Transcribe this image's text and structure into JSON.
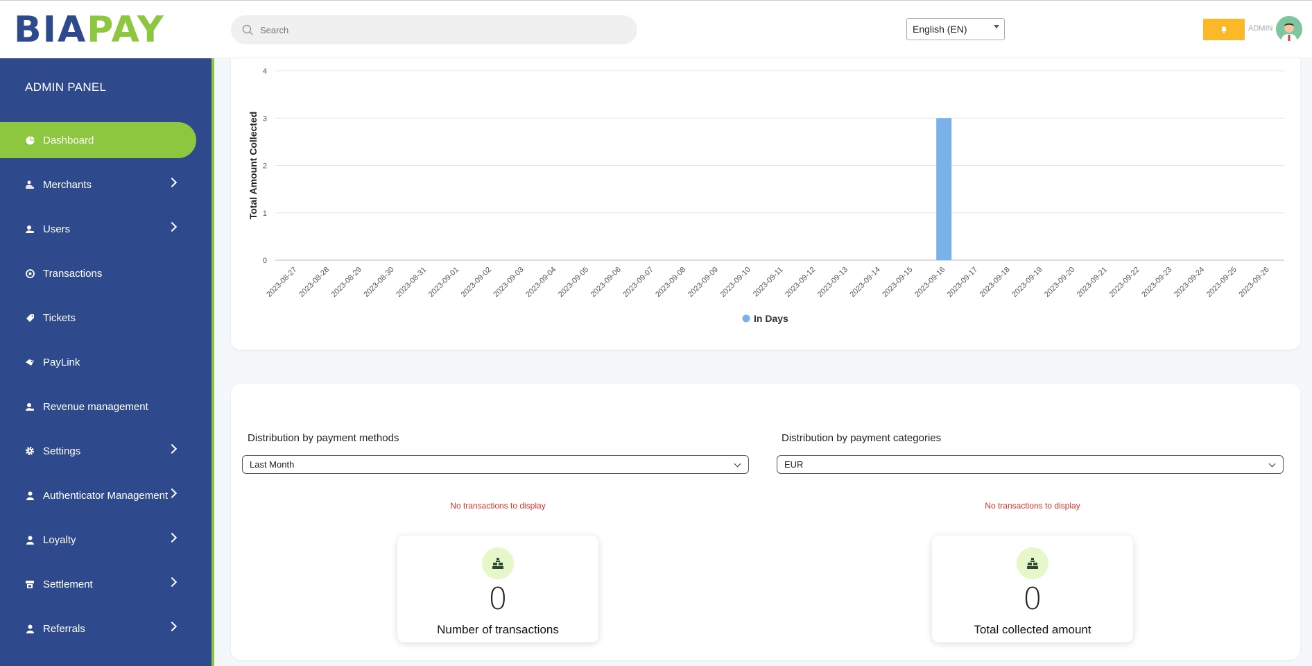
{
  "brand": {
    "logo_part1": "BIA",
    "logo_part2": "PAY"
  },
  "header": {
    "search_placeholder": "Search",
    "language": "English (EN)",
    "notification_icon": "bell-icon",
    "admin_label": "ADMIN"
  },
  "sidebar": {
    "title": "ADMIN PANEL",
    "items": [
      {
        "label": "Dashboard",
        "icon": "dashboard-icon",
        "active": true,
        "has_submenu": false
      },
      {
        "label": "Merchants",
        "icon": "merchant-icon",
        "has_submenu": true
      },
      {
        "label": "Users",
        "icon": "users-icon",
        "has_submenu": true
      },
      {
        "label": "Transactions",
        "icon": "transactions-icon",
        "has_submenu": false
      },
      {
        "label": "Tickets",
        "icon": "ticket-icon",
        "has_submenu": false
      },
      {
        "label": "PayLink",
        "icon": "paylink-icon",
        "has_submenu": false
      },
      {
        "label": "Revenue management",
        "icon": "revenue-icon",
        "has_submenu": false
      },
      {
        "label": "Settings",
        "icon": "gear-icon",
        "has_submenu": true
      },
      {
        "label": "Authenticator Management",
        "icon": "authenticator-icon",
        "has_submenu": true
      },
      {
        "label": "Loyalty",
        "icon": "loyalty-icon",
        "has_submenu": true
      },
      {
        "label": "Settlement",
        "icon": "settlement-icon",
        "has_submenu": true
      },
      {
        "label": "Referrals",
        "icon": "referrals-icon",
        "has_submenu": true
      }
    ]
  },
  "chart_data": {
    "type": "bar",
    "ylabel": "Total Amount Collected",
    "ylim": [
      0,
      4
    ],
    "yticks": [
      0,
      1,
      2,
      3,
      4
    ],
    "categories": [
      "2023-08-27",
      "2023-08-28",
      "2023-08-29",
      "2023-08-30",
      "2023-08-31",
      "2023-09-01",
      "2023-09-02",
      "2023-09-03",
      "2023-09-04",
      "2023-09-05",
      "2023-09-06",
      "2023-09-07",
      "2023-09-08",
      "2023-09-09",
      "2023-09-10",
      "2023-09-11",
      "2023-09-12",
      "2023-09-13",
      "2023-09-14",
      "2023-09-15",
      "2023-09-16",
      "2023-09-17",
      "2023-09-18",
      "2023-09-19",
      "2023-09-20",
      "2023-09-21",
      "2023-09-22",
      "2023-09-23",
      "2023-09-24",
      "2023-09-25",
      "2023-09-26"
    ],
    "series": [
      {
        "name": "In Days",
        "color": "#7ab1e8",
        "values": [
          0,
          0,
          0,
          0,
          0,
          0,
          0,
          0,
          0,
          0,
          0,
          0,
          0,
          0,
          0,
          0,
          0,
          0,
          0,
          0,
          3,
          0,
          0,
          0,
          0,
          0,
          0,
          0,
          0,
          0,
          0
        ]
      }
    ],
    "grid": true,
    "legend": "bottom-center"
  },
  "distribution": {
    "methods": {
      "title": "Distribution by payment methods",
      "selected": "Last Month",
      "empty_text": "No transactions to display",
      "stat_value": "0",
      "stat_label": "Number of transactions"
    },
    "categories": {
      "title": "Distribution by payment categories",
      "selected": "EUR",
      "empty_text": "No transactions to display",
      "stat_value": "0",
      "stat_label": "Total collected amount"
    }
  },
  "colors": {
    "sidebar_bg": "#2e4a8c",
    "accent_green": "#8dc63f",
    "notif_yellow": "#fbb829",
    "bar_blue": "#7ab1e8",
    "error_red": "#d9342b"
  }
}
